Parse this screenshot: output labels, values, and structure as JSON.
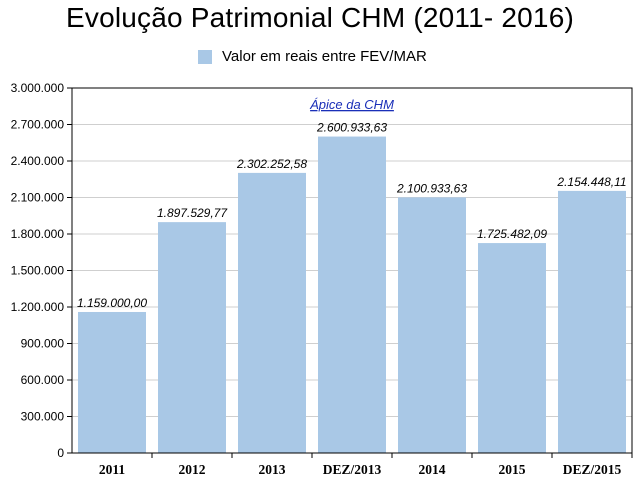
{
  "chart_data": {
    "type": "bar",
    "title": "Evolução Patrimonial CHM (2011- 2016)",
    "legend": {
      "label": "Valor em reais entre FEV/MAR",
      "placement": "top"
    },
    "categories": [
      "2011",
      "2012",
      "2013",
      "DEZ/2013",
      "2014",
      "2015",
      "DEZ/2015"
    ],
    "series": [
      {
        "name": "Valor em reais entre FEV/MAR",
        "values": [
          1159000.0,
          1897529.77,
          2302252.58,
          2600933.63,
          2100933.63,
          1725482.09,
          2154448.11
        ],
        "data_labels": [
          "1.159.000,00",
          "1.897.529,77",
          "2.302.252,58",
          "2.600.933,63",
          "2.100.933,63",
          "1.725.482,09",
          "2.154.448,11"
        ]
      }
    ],
    "ylim": [
      0,
      3000000
    ],
    "yticks": [
      0,
      300000,
      600000,
      900000,
      1200000,
      1500000,
      1800000,
      2100000,
      2400000,
      2700000,
      3000000
    ],
    "ytick_labels": [
      "0",
      "300.000",
      "600.000",
      "900.000",
      "1.200.000",
      "1.500.000",
      "1.800.000",
      "2.100.000",
      "2.400.000",
      "2.700.000",
      "3.000.000"
    ],
    "grid": true,
    "annotation": {
      "text": "Ápice da CHM",
      "category": "DEZ/2013"
    },
    "colors": {
      "bar": "#a9c8e6",
      "grid": "#cfcfcf",
      "annotation": "#1a2fb8"
    }
  }
}
